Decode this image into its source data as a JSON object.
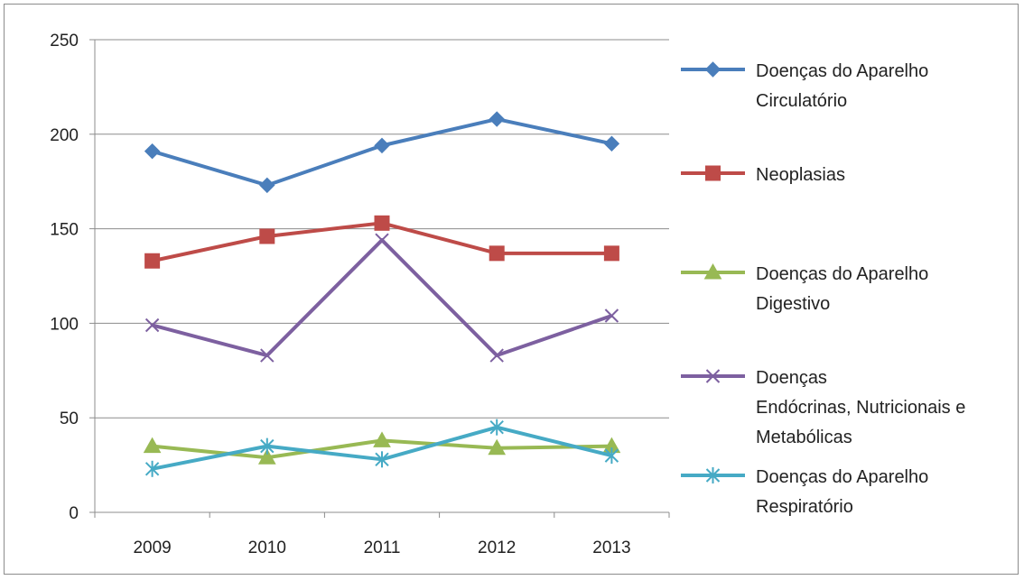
{
  "chart_data": {
    "type": "line",
    "categories": [
      "2009",
      "2010",
      "2011",
      "2012",
      "2013"
    ],
    "ylim": [
      0,
      250
    ],
    "yticks": [
      "0",
      "50",
      "100",
      "150",
      "200",
      "250"
    ],
    "grid": true,
    "legend_position": "right",
    "series": [
      {
        "name_lines": [
          "Doenças do Aparelho",
          "Circulatório"
        ],
        "color": "#4a7ebb",
        "marker": "diamond",
        "values": [
          191,
          173,
          194,
          208,
          195
        ]
      },
      {
        "name_lines": [
          "Neoplasias"
        ],
        "color": "#be4b48",
        "marker": "square",
        "values": [
          133,
          146,
          153,
          137,
          137
        ]
      },
      {
        "name_lines": [
          "Doenças do Aparelho",
          "Digestivo"
        ],
        "color": "#98b954",
        "marker": "triangle",
        "values": [
          35,
          29,
          38,
          34,
          35
        ]
      },
      {
        "name_lines": [
          "Doenças",
          "Endócrinas, Nutricionais e",
          "Metabólicas"
        ],
        "color": "#7d60a0",
        "marker": "x",
        "values": [
          99,
          83,
          144,
          83,
          104
        ]
      },
      {
        "name_lines": [
          "Doenças do Aparelho",
          "Respiratório"
        ],
        "color": "#46aac5",
        "marker": "star",
        "values": [
          23,
          35,
          28,
          45,
          30
        ]
      }
    ]
  }
}
